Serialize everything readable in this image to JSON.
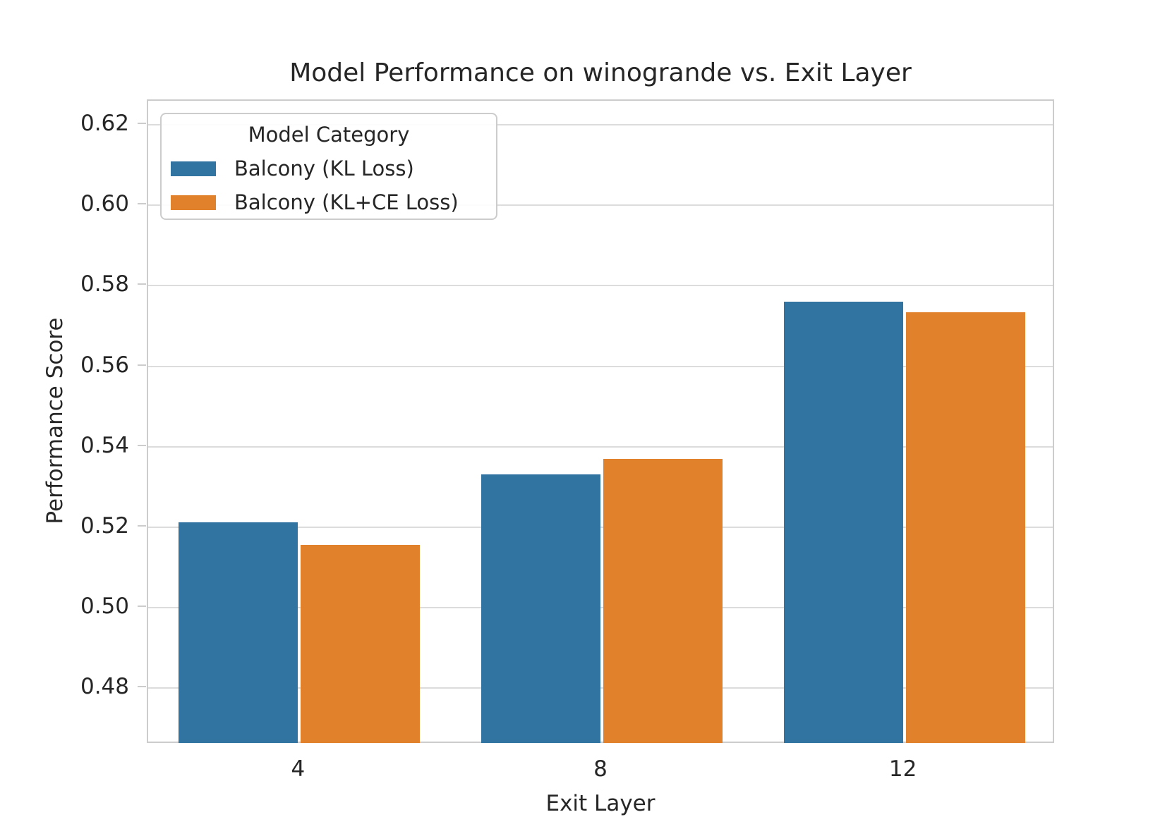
{
  "chart_data": {
    "type": "bar",
    "title": "Model Performance on winogrande vs. Exit Layer",
    "xlabel": "Exit Layer",
    "ylabel": "Performance Score",
    "categories": [
      "4",
      "8",
      "12"
    ],
    "series": [
      {
        "name": "Balcony (KL Loss)",
        "color": "#3274a1",
        "values": [
          0.5212,
          0.5331,
          0.5761
        ]
      },
      {
        "name": "Balcony (KL+CE Loss)",
        "color": "#e1812c",
        "values": [
          0.5156,
          0.537,
          0.5735
        ]
      }
    ],
    "ylim": [
      0.466,
      0.626
    ],
    "yticks": [
      0.48,
      0.5,
      0.52,
      0.54,
      0.56,
      0.58,
      0.6,
      0.62
    ],
    "ytick_labels": [
      "0.48",
      "0.50",
      "0.52",
      "0.54",
      "0.56",
      "0.58",
      "0.60",
      "0.62"
    ],
    "legend_title": "Model Category",
    "legend_position": "upper left",
    "grid": "horizontal gridlines on"
  },
  "colors": {
    "background": "#ffffff",
    "text": "#262626",
    "gridline": "#dcdcdc",
    "spine": "#cccccc",
    "series_blue": "#3274a1",
    "series_orange": "#e1812c"
  }
}
